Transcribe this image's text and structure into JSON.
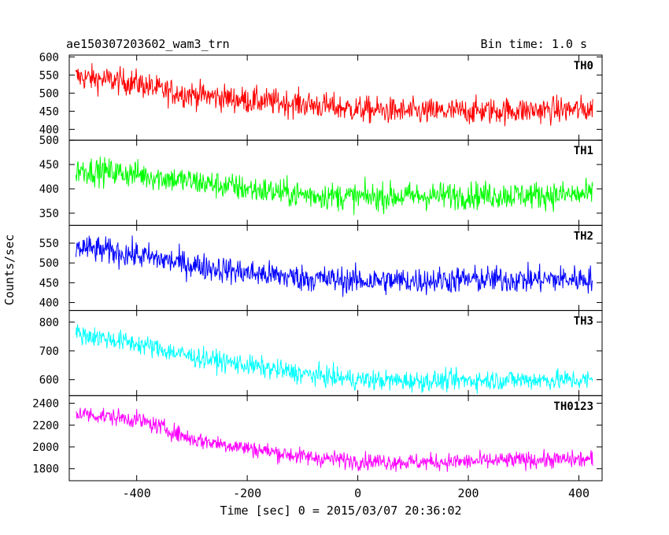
{
  "header": {
    "title": "ae150307203602_wam3_trn",
    "bin_time": "Bin time: 1.0 s"
  },
  "chart_data": {
    "type": "line",
    "title": "ae150307203602_wam3_trn",
    "subtitle": "Bin time: 1.0 s",
    "xlabel": "Time [sec] 0 = 2015/03/07 20:36:02",
    "ylabel": "Counts/sec",
    "xlim": [
      -522,
      442
    ],
    "x_ticks": [
      -400,
      -200,
      0,
      200,
      400
    ],
    "x_range_data": [
      -510,
      425
    ],
    "panels": [
      {
        "name": "TH0",
        "color": "#ff0000",
        "ylim": [
          370,
          605
        ],
        "y_ticks": [
          400,
          450,
          500,
          550,
          600
        ],
        "trend_x": [
          -510,
          -400,
          -350,
          -200,
          -100,
          0,
          100,
          200,
          300,
          425
        ],
        "trend_y": [
          545,
          528,
          505,
          480,
          470,
          455,
          448,
          450,
          452,
          455
        ],
        "noise": 26
      },
      {
        "name": "TH1",
        "color": "#00ff00",
        "ylim": [
          325,
          500
        ],
        "y_ticks": [
          350,
          400,
          450,
          500
        ],
        "trend_x": [
          -510,
          -400,
          -300,
          -200,
          -100,
          0,
          100,
          200,
          300,
          425
        ],
        "trend_y": [
          440,
          430,
          415,
          400,
          388,
          383,
          385,
          387,
          387,
          388
        ],
        "noise": 20
      },
      {
        "name": "TH2",
        "color": "#0000ff",
        "ylim": [
          380,
          595
        ],
        "y_ticks": [
          400,
          450,
          500,
          550
        ],
        "trend_x": [
          -510,
          -400,
          -300,
          -200,
          -100,
          0,
          100,
          200,
          300,
          425
        ],
        "trend_y": [
          540,
          520,
          495,
          475,
          462,
          455,
          455,
          458,
          458,
          460
        ],
        "noise": 24
      },
      {
        "name": "TH3",
        "color": "#00ffff",
        "ylim": [
          545,
          840
        ],
        "y_ticks": [
          600,
          700,
          800
        ],
        "trend_x": [
          -510,
          -400,
          -300,
          -200,
          -100,
          0,
          100,
          200,
          300,
          425
        ],
        "trend_y": [
          760,
          725,
          680,
          650,
          620,
          600,
          595,
          598,
          600,
          598
        ],
        "noise": 25
      },
      {
        "name": "TH0123",
        "color": "#ff00ff",
        "ylim": [
          1690,
          2470
        ],
        "y_ticks": [
          1800,
          2000,
          2200,
          2400
        ],
        "trend_x": [
          -510,
          -400,
          -350,
          -300,
          -200,
          -100,
          0,
          100,
          200,
          300,
          425
        ],
        "trend_y": [
          2310,
          2250,
          2170,
          2070,
          1990,
          1910,
          1870,
          1860,
          1865,
          1880,
          1885
        ],
        "noise": 55
      }
    ]
  }
}
